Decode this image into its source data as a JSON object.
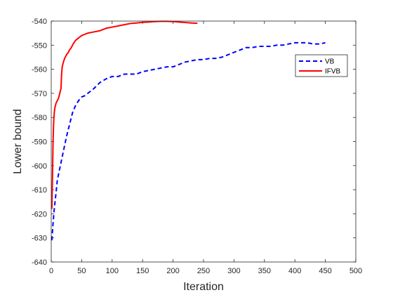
{
  "chart_data": {
    "type": "line",
    "title": "",
    "xlabel": "Iteration",
    "ylabel": "Lower bound",
    "xlim": [
      0,
      500
    ],
    "ylim": [
      -640,
      -540
    ],
    "xticks": [
      0,
      50,
      100,
      150,
      200,
      250,
      300,
      350,
      400,
      450,
      500
    ],
    "yticks": [
      -640,
      -630,
      -620,
      -610,
      -600,
      -590,
      -580,
      -570,
      -560,
      -550,
      -540
    ],
    "grid": false,
    "legend_position": "top-right",
    "series": [
      {
        "name": "VB",
        "color": "#0000ff",
        "style": "dashed",
        "x": [
          1,
          3,
          5,
          8,
          10,
          15,
          20,
          25,
          30,
          35,
          40,
          45,
          50,
          55,
          60,
          70,
          80,
          90,
          100,
          110,
          120,
          130,
          140,
          150,
          160,
          170,
          180,
          190,
          200,
          210,
          220,
          230,
          240,
          250,
          260,
          270,
          280,
          290,
          300,
          310,
          320,
          330,
          340,
          350,
          360,
          370,
          380,
          390,
          400,
          410,
          420,
          430,
          440,
          450
        ],
        "y": [
          -631,
          -624,
          -618,
          -611,
          -606,
          -600,
          -594,
          -588,
          -583,
          -578,
          -575,
          -573,
          -571.5,
          -571,
          -570,
          -568,
          -565.5,
          -564,
          -563,
          -563,
          -562,
          -562,
          -562,
          -561,
          -560.5,
          -560,
          -559.5,
          -559,
          -559,
          -558,
          -557,
          -556.5,
          -556,
          -556,
          -555.5,
          -555.5,
          -555,
          -554,
          -553,
          -552,
          -551,
          -551,
          -550.5,
          -550.5,
          -550.5,
          -550,
          -550,
          -549.5,
          -549,
          -549,
          -549,
          -549.5,
          -549.5,
          -549
        ]
      },
      {
        "name": "IFVB",
        "color": "#ff0000",
        "style": "solid",
        "x": [
          1,
          2,
          3,
          4,
          5,
          6,
          8,
          10,
          12,
          14,
          16,
          17,
          18,
          20,
          22,
          25,
          28,
          30,
          33,
          36,
          40,
          45,
          50,
          55,
          60,
          70,
          80,
          90,
          100,
          110,
          120,
          130,
          140,
          150,
          160,
          170,
          180,
          190,
          200,
          210,
          220,
          230,
          240
        ],
        "y": [
          -618,
          -605,
          -590,
          -582,
          -578,
          -576,
          -574,
          -573,
          -572,
          -570,
          -568,
          -562,
          -559,
          -557,
          -555.5,
          -554,
          -553,
          -552,
          -551,
          -549.5,
          -548,
          -547,
          -546,
          -545.5,
          -545,
          -544.5,
          -544,
          -543,
          -542.5,
          -542,
          -541.5,
          -541,
          -540.8,
          -540.5,
          -540.4,
          -540.2,
          -540.1,
          -540.1,
          -540.2,
          -540.4,
          -540.6,
          -540.8,
          -540.9
        ]
      }
    ]
  }
}
